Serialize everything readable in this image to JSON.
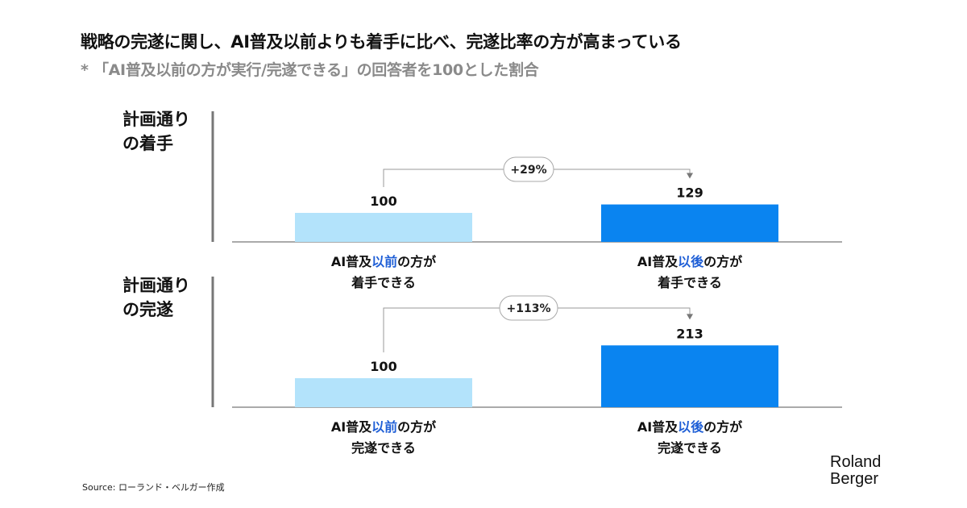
{
  "title": "戦略の完遂に関し、AI普及以前よりも着手に比べ、完遂比率の方が高まっている",
  "subtitle": "* 「AI普及以前の方が実行/完遂できる」の回答者を100とした割合",
  "source": "Source: ローランド・ベルガー作成",
  "logo": {
    "line1": "Roland",
    "line2": "Berger"
  },
  "colors": {
    "before": "#b3e3fb",
    "after": "#0a84f0",
    "highlight": "#1f5fd6",
    "axis": "#777777",
    "connector": "#999999"
  },
  "chart_data": [
    {
      "type": "bar",
      "group_label": [
        "計画通り",
        "の着手"
      ],
      "categories": [
        {
          "prefix": "AI普及",
          "highlight": "以前",
          "suffix": "の方が",
          "line2": "着手できる"
        },
        {
          "prefix": "AI普及",
          "highlight": "以後",
          "suffix": "の方が",
          "line2": "着手できる"
        }
      ],
      "values": [
        100,
        129
      ],
      "change_label": "+29%",
      "ylim": [
        0,
        300
      ]
    },
    {
      "type": "bar",
      "group_label": [
        "計画通り",
        "の完遂"
      ],
      "categories": [
        {
          "prefix": "AI普及",
          "highlight": "以前",
          "suffix": "の方が",
          "line2": "完遂できる"
        },
        {
          "prefix": "AI普及",
          "highlight": "以後",
          "suffix": "の方が",
          "line2": "完遂できる"
        }
      ],
      "values": [
        100,
        213
      ],
      "change_label": "+113%",
      "ylim": [
        0,
        300
      ]
    }
  ]
}
